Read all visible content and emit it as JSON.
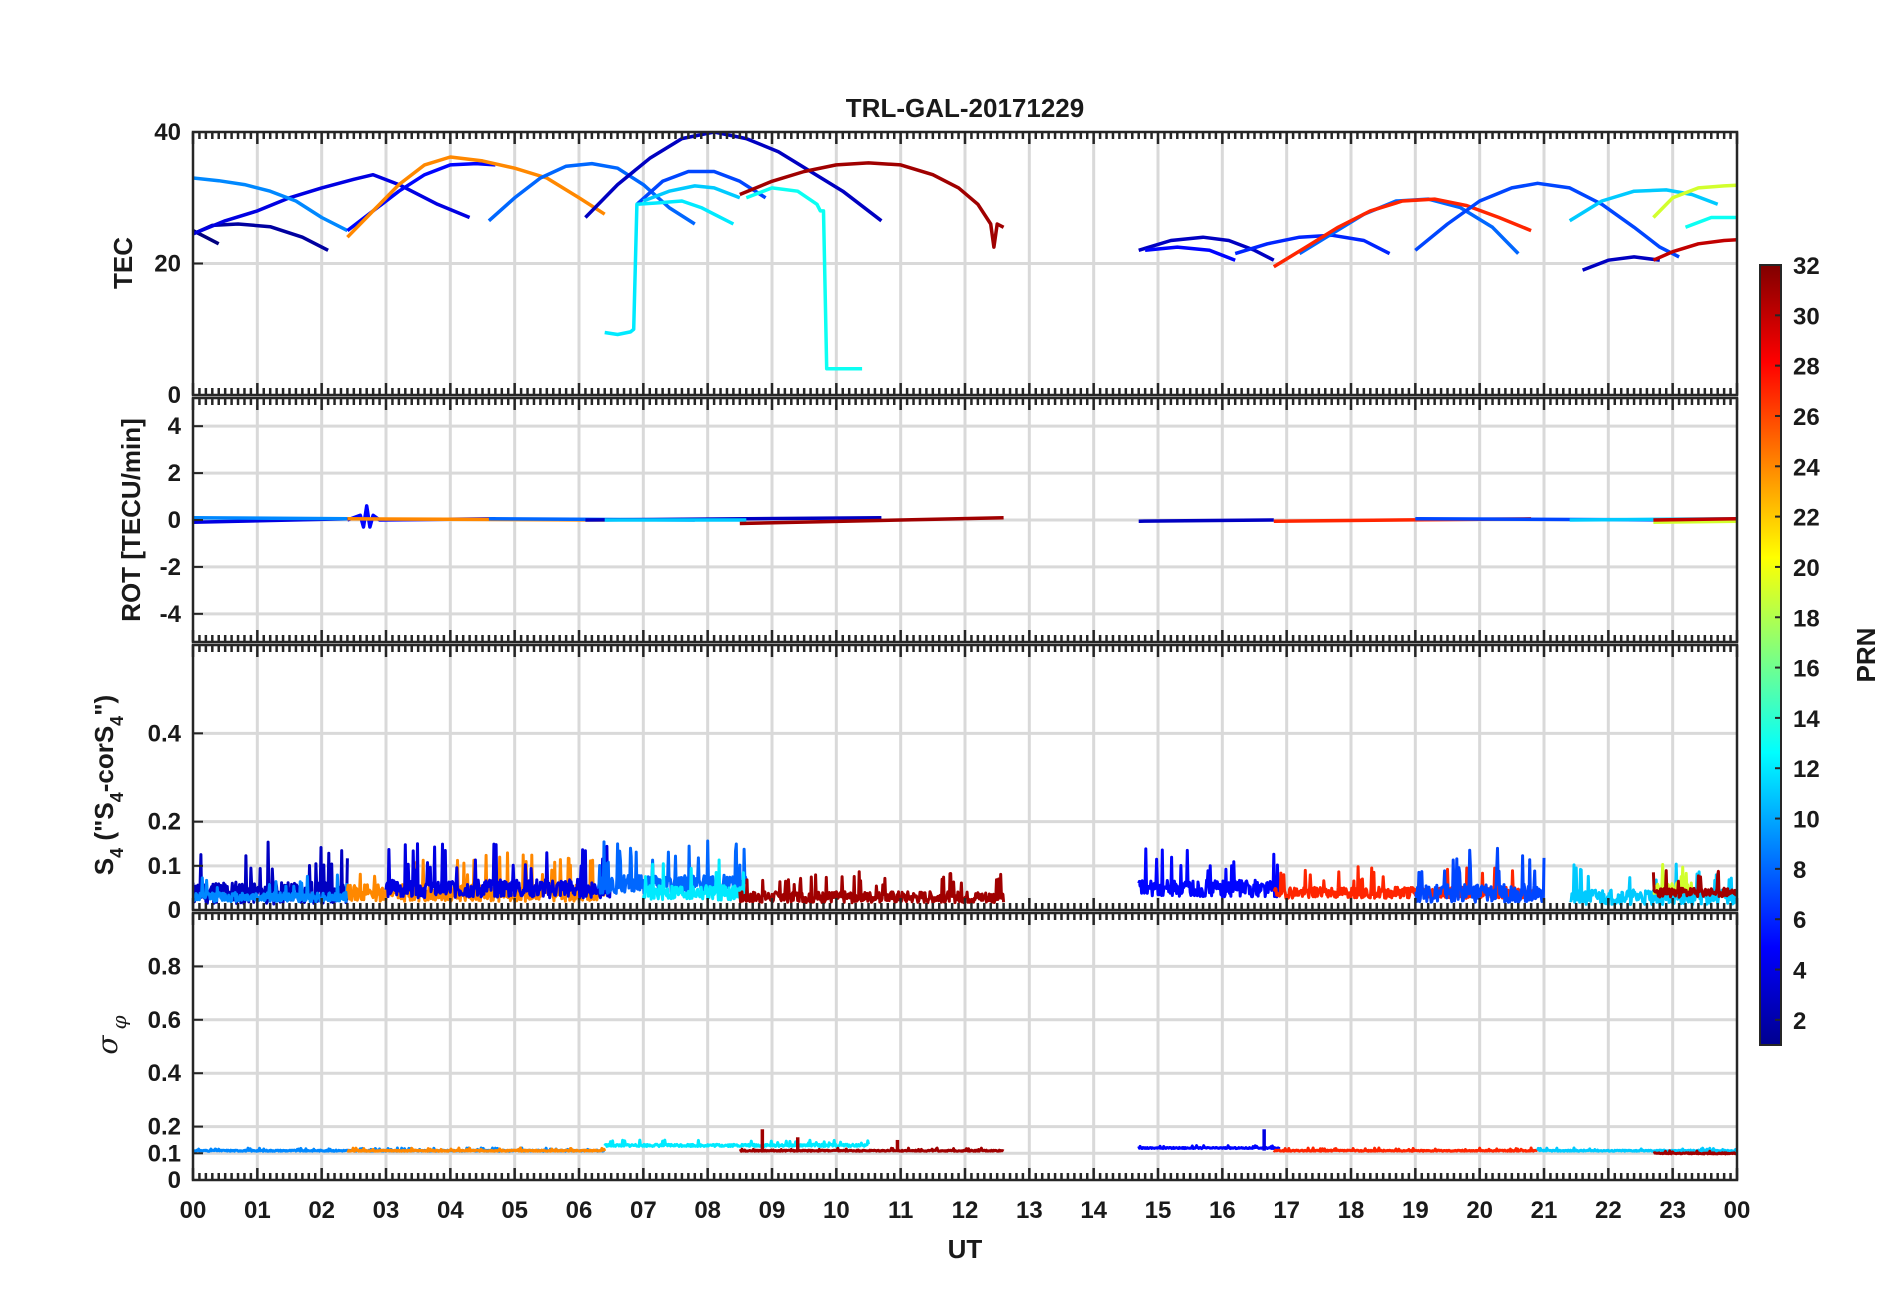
{
  "chart_data": {
    "type": "line",
    "title": "TRL-GAL-20171229",
    "xlabel": "UT",
    "x_tick_labels": [
      "00",
      "01",
      "02",
      "03",
      "04",
      "05",
      "06",
      "07",
      "08",
      "09",
      "10",
      "11",
      "12",
      "13",
      "14",
      "15",
      "16",
      "17",
      "18",
      "19",
      "20",
      "21",
      "22",
      "23",
      "00"
    ],
    "xlim": [
      0,
      24
    ],
    "colorbar": {
      "label": "PRN",
      "range": [
        1,
        32
      ],
      "tick_values": [
        2,
        4,
        6,
        8,
        10,
        12,
        14,
        16,
        18,
        20,
        22,
        24,
        26,
        28,
        30,
        32
      ],
      "tick_labels": [
        "2",
        "4",
        "6",
        "8",
        "10",
        "12",
        "14",
        "16",
        "18",
        "20",
        "22",
        "24",
        "26",
        "28",
        "30",
        "32"
      ],
      "colormap": "jet"
    },
    "panels": [
      {
        "id": "tec",
        "ylabel": "TEC",
        "ylim": [
          0,
          40
        ],
        "ytick_values": [
          0,
          20,
          40
        ],
        "ytick_labels": [
          "0",
          "20",
          "40"
        ],
        "series": [
          {
            "prn": 2,
            "x": [
              0.0,
              0.3,
              0.7,
              1.2,
              1.7,
              2.1
            ],
            "y": [
              24.5,
              25.8,
              26,
              25.6,
              24,
              22
            ]
          },
          {
            "prn": 1,
            "x": [
              0.0,
              0.2,
              0.4
            ],
            "y": [
              25,
              24,
              23
            ]
          },
          {
            "prn": 4,
            "x": [
              0.0,
              0.5,
              1.0,
              1.5,
              2.0,
              2.5,
              2.8,
              3.2,
              3.8,
              4.3
            ],
            "y": [
              24.5,
              26.5,
              28,
              30,
              31.5,
              32.8,
              33.5,
              32,
              29,
              27
            ]
          },
          {
            "prn": 9,
            "x": [
              0.0,
              0.4,
              0.8,
              1.2,
              1.6,
              2.0,
              2.4
            ],
            "y": [
              33,
              32.6,
              32,
              31,
              29.5,
              27,
              25
            ]
          },
          {
            "prn": 5,
            "x": [
              2.4,
              2.8,
              3.2,
              3.6,
              4.0,
              4.4,
              4.7
            ],
            "y": [
              25,
              28,
              31,
              33.5,
              35,
              35.2,
              35
            ]
          },
          {
            "prn": 24,
            "x": [
              2.4,
              2.8,
              3.2,
              3.6,
              4.0,
              4.5,
              5.0,
              5.5,
              6.0,
              6.4
            ],
            "y": [
              24,
              28,
              32,
              35,
              36.2,
              35.6,
              34.5,
              33,
              30,
              27.5
            ]
          },
          {
            "prn": 8,
            "x": [
              4.6,
              5.0,
              5.4,
              5.8,
              6.2,
              6.6,
              7.0,
              7.4,
              7.8
            ],
            "y": [
              26.5,
              30,
              33,
              34.8,
              35.2,
              34.5,
              32,
              28.5,
              26
            ]
          },
          {
            "prn": 3,
            "x": [
              6.1,
              6.6,
              7.1,
              7.6,
              8.1,
              8.6,
              9.1,
              9.6,
              10.1,
              10.7
            ],
            "y": [
              27,
              32,
              36,
              39,
              40,
              39,
              37,
              34,
              31,
              26.5
            ]
          },
          {
            "prn": 7,
            "x": [
              6.9,
              7.3,
              7.7,
              8.1,
              8.5,
              8.9
            ],
            "y": [
              29,
              32.5,
              34,
              34,
              32.5,
              30
            ]
          },
          {
            "prn": 11,
            "x": [
              7.0,
              7.4,
              7.8,
              8.1,
              8.5
            ],
            "y": [
              29.5,
              31,
              31.8,
              31.5,
              30
            ]
          },
          {
            "prn": 12,
            "x": [
              6.4,
              6.6,
              6.8,
              6.85,
              6.9,
              7.2,
              7.6,
              7.9,
              8.1,
              8.4
            ],
            "y": [
              9.5,
              9.2,
              9.6,
              10,
              29,
              29.2,
              29.5,
              28.5,
              27.5,
              26
            ]
          },
          {
            "prn": 13,
            "x": [
              8.6,
              9.0,
              9.4,
              9.7,
              9.75,
              9.8,
              9.85,
              10.0,
              10.4
            ],
            "y": [
              30,
              31.5,
              31,
              29,
              28,
              28,
              4,
              4,
              4
            ]
          },
          {
            "prn": 31,
            "x": [
              8.5,
              9.0,
              9.5,
              10.0,
              10.5,
              11.0,
              11.5,
              11.9,
              12.2,
              12.4,
              12.45,
              12.5,
              12.6
            ],
            "y": [
              30.5,
              32.5,
              34,
              35,
              35.3,
              35,
              33.5,
              31.5,
              29,
              26,
              22.5,
              26,
              25.5
            ]
          },
          {
            "prn": 3,
            "x": [
              14.7,
              15.2,
              15.7,
              16.1,
              16.5,
              16.8
            ],
            "y": [
              22,
              23.5,
              24,
              23.5,
              22,
              20.5
            ]
          },
          {
            "prn": 5,
            "x": [
              14.8,
              15.3,
              15.8,
              16.2
            ],
            "y": [
              22,
              22.5,
              22,
              20.5
            ]
          },
          {
            "prn": 6,
            "x": [
              16.2,
              16.7,
              17.2,
              17.7,
              18.2,
              18.6
            ],
            "y": [
              21.5,
              23,
              24,
              24.3,
              23.5,
              21.5
            ]
          },
          {
            "prn": 8,
            "x": [
              17.2,
              17.7,
              18.2,
              18.7,
              19.2,
              19.7,
              20.2,
              20.6
            ],
            "y": [
              21.5,
              24.5,
              27.5,
              29.5,
              29.8,
              28.5,
              25.5,
              21.5
            ]
          },
          {
            "prn": 27,
            "x": [
              16.8,
              17.3,
              17.8,
              18.3,
              18.8,
              19.3,
              19.8,
              20.3,
              20.8
            ],
            "y": [
              19.5,
              22.5,
              25.5,
              28,
              29.5,
              29.8,
              28.8,
              27,
              25
            ]
          },
          {
            "prn": 7,
            "x": [
              19.0,
              19.5,
              20.0,
              20.5,
              20.9,
              21.4,
              21.9,
              22.4,
              22.8,
              23.1
            ],
            "y": [
              22,
              26,
              29.5,
              31.5,
              32.2,
              31.5,
              29,
              25.5,
              22.5,
              21
            ]
          },
          {
            "prn": 11,
            "x": [
              21.4,
              21.9,
              22.4,
              22.9,
              23.3,
              23.7
            ],
            "y": [
              26.5,
              29.5,
              31,
              31.2,
              30.5,
              29
            ]
          },
          {
            "prn": 13,
            "x": [
              23.2,
              23.6,
              24.0
            ],
            "y": [
              25.5,
              27,
              27
            ]
          },
          {
            "prn": 19,
            "x": [
              22.7,
              23.0,
              23.4,
              23.8,
              24.0
            ],
            "y": [
              27,
              30,
              31.5,
              31.8,
              31.9
            ]
          },
          {
            "prn": 3,
            "x": [
              21.6,
              22.0,
              22.4,
              22.8
            ],
            "y": [
              19,
              20.5,
              21,
              20.5
            ]
          },
          {
            "prn": 30,
            "x": [
              22.7,
              23.0,
              23.4,
              23.8,
              24.0
            ],
            "y": [
              20.5,
              21.8,
              23,
              23.5,
              23.6
            ]
          }
        ]
      },
      {
        "id": "rot",
        "ylabel": "ROT [TECU/min]",
        "ylim": [
          -5.2,
          5.2
        ],
        "ytick_values": [
          -4,
          -2,
          0,
          2,
          4
        ],
        "ytick_labels": [
          "-4",
          "-2",
          "0",
          "2",
          "4"
        ],
        "series": [
          {
            "prn": 4,
            "x": [
              0.0,
              2.4
            ],
            "y": [
              -0.1,
              0.05
            ]
          },
          {
            "prn": 9,
            "x": [
              0.0,
              2.4
            ],
            "y": [
              0.1,
              0.05
            ]
          },
          {
            "prn": 5,
            "x": [
              2.4,
              2.6,
              2.65,
              2.7,
              2.75,
              2.8,
              2.9,
              4.7
            ],
            "y": [
              0.0,
              0.2,
              -0.3,
              0.6,
              -0.3,
              0.2,
              0.0,
              0.05
            ]
          },
          {
            "prn": 24,
            "x": [
              2.4,
              6.4
            ],
            "y": [
              0.05,
              0.0
            ]
          },
          {
            "prn": 8,
            "x": [
              4.6,
              7.8
            ],
            "y": [
              0.05,
              0.0
            ]
          },
          {
            "prn": 3,
            "x": [
              6.1,
              10.7
            ],
            "y": [
              0.0,
              0.1
            ]
          },
          {
            "prn": 11,
            "x": [
              6.4,
              8.6
            ],
            "y": [
              0.0,
              0.0
            ]
          },
          {
            "prn": 31,
            "x": [
              8.5,
              12.6
            ],
            "y": [
              -0.15,
              0.1
            ]
          },
          {
            "prn": 3,
            "x": [
              14.7,
              16.8
            ],
            "y": [
              -0.05,
              0.0
            ]
          },
          {
            "prn": 27,
            "x": [
              16.8,
              20.8
            ],
            "y": [
              -0.05,
              0.05
            ]
          },
          {
            "prn": 7,
            "x": [
              19.0,
              23.1
            ],
            "y": [
              0.05,
              0.0
            ]
          },
          {
            "prn": 11,
            "x": [
              21.4,
              24.0
            ],
            "y": [
              0.0,
              0.05
            ]
          },
          {
            "prn": 19,
            "x": [
              22.7,
              24.0
            ],
            "y": [
              -0.1,
              -0.05
            ]
          },
          {
            "prn": 30,
            "x": [
              22.7,
              24.0
            ],
            "y": [
              0.0,
              0.05
            ]
          }
        ]
      },
      {
        "id": "s4",
        "ylabel": "S4 (\"S4-corS4\")",
        "ylim": [
          0,
          0.6
        ],
        "ytick_values": [
          0,
          0.1,
          0.2,
          0.4
        ],
        "ytick_labels": [
          "0",
          "0.1",
          "0.2",
          "0.4"
        ],
        "segments": [
          {
            "prn": 3,
            "x0": 0.0,
            "x1": 2.4,
            "base": 0.04,
            "amp": 0.12,
            "seed": 11
          },
          {
            "prn": 9,
            "x0": 0.0,
            "x1": 2.4,
            "base": 0.03,
            "amp": 0.05,
            "seed": 12
          },
          {
            "prn": 24,
            "x0": 2.4,
            "x1": 6.4,
            "base": 0.04,
            "amp": 0.09,
            "seed": 13
          },
          {
            "prn": 4,
            "x0": 3.0,
            "x1": 6.5,
            "base": 0.05,
            "amp": 0.1,
            "seed": 14
          },
          {
            "prn": 8,
            "x0": 6.3,
            "x1": 8.6,
            "base": 0.06,
            "amp": 0.1,
            "seed": 15
          },
          {
            "prn": 12,
            "x0": 7.0,
            "x1": 8.6,
            "base": 0.04,
            "amp": 0.08,
            "seed": 16
          },
          {
            "prn": 31,
            "x0": 8.5,
            "x1": 12.6,
            "base": 0.03,
            "amp": 0.06,
            "seed": 17
          },
          {
            "prn": 5,
            "x0": 14.7,
            "x1": 16.9,
            "base": 0.05,
            "amp": 0.09,
            "seed": 18
          },
          {
            "prn": 27,
            "x0": 16.8,
            "x1": 20.9,
            "base": 0.04,
            "amp": 0.06,
            "seed": 19
          },
          {
            "prn": 7,
            "x0": 19.0,
            "x1": 21.0,
            "base": 0.04,
            "amp": 0.1,
            "seed": 20
          },
          {
            "prn": 11,
            "x0": 21.4,
            "x1": 24.0,
            "base": 0.03,
            "amp": 0.08,
            "seed": 21
          },
          {
            "prn": 19,
            "x0": 22.7,
            "x1": 23.3,
            "base": 0.05,
            "amp": 0.06,
            "seed": 22
          },
          {
            "prn": 31,
            "x0": 22.7,
            "x1": 24.0,
            "base": 0.04,
            "amp": 0.05,
            "seed": 23
          }
        ]
      },
      {
        "id": "sigma_phi",
        "ylabel": "σ_φ",
        "ylim": [
          0,
          1
        ],
        "ytick_values": [
          0,
          0.1,
          0.2,
          0.4,
          0.6,
          0.8
        ],
        "ytick_labels": [
          "0",
          "0.1",
          "0.2",
          "0.4",
          "0.6",
          "0.8"
        ],
        "segments": [
          {
            "prn": 9,
            "x0": 0.0,
            "x1": 6.4,
            "base": 0.11,
            "amp": 0.01,
            "seed": 31
          },
          {
            "prn": 24,
            "x0": 2.4,
            "x1": 6.4,
            "base": 0.11,
            "amp": 0.01,
            "seed": 32
          },
          {
            "prn": 12,
            "x0": 6.4,
            "x1": 10.5,
            "base": 0.13,
            "amp": 0.02,
            "seed": 33
          },
          {
            "prn": 31,
            "x0": 8.5,
            "x1": 12.6,
            "base": 0.11,
            "amp": 0.01,
            "seed": 34
          },
          {
            "prn": 5,
            "x0": 14.7,
            "x1": 16.9,
            "base": 0.12,
            "amp": 0.01,
            "seed": 35
          },
          {
            "prn": 27,
            "x0": 16.8,
            "x1": 20.9,
            "base": 0.11,
            "amp": 0.01,
            "seed": 36
          },
          {
            "prn": 11,
            "x0": 20.9,
            "x1": 24.0,
            "base": 0.11,
            "amp": 0.01,
            "seed": 37
          },
          {
            "prn": 31,
            "x0": 22.7,
            "x1": 24.0,
            "base": 0.1,
            "amp": 0.01,
            "seed": 38
          }
        ],
        "spikes": [
          {
            "prn": 31,
            "x": 8.85,
            "y": 0.19
          },
          {
            "prn": 31,
            "x": 9.4,
            "y": 0.16
          },
          {
            "prn": 31,
            "x": 10.95,
            "y": 0.15
          },
          {
            "prn": 4,
            "x": 16.65,
            "y": 0.19
          }
        ]
      }
    ]
  }
}
